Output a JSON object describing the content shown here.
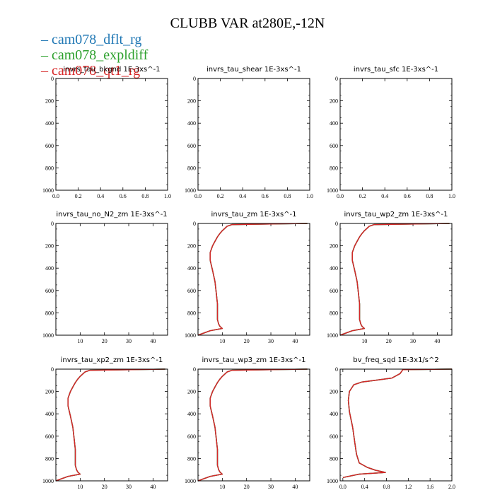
{
  "title": "CLUBB VAR at280E,-12N",
  "colors": {
    "series_0": "#1f77b4",
    "series_1": "#2ca02c",
    "series_2": "#d62728"
  },
  "legend": [
    "cam078_dflt_rg",
    "cam078_expldiff",
    "cam078_qt1_rg"
  ],
  "chart_data": [
    {
      "type": "line",
      "title": "invrs_tau_bkgnd   1E-3xs^-1",
      "xlim": [
        0,
        1
      ],
      "ylim": [
        1000,
        0
      ],
      "xticks": [
        0.0,
        0.2,
        0.4,
        0.6,
        0.8,
        1.0
      ],
      "xtick_labels": [
        "0.0",
        "0.2",
        "0.4",
        "0.6",
        "0.8",
        "1.0"
      ],
      "yticks": [
        0,
        200,
        400,
        600,
        800,
        1000
      ],
      "ytick_labels": [
        "0",
        "200",
        "400",
        "600",
        "800",
        "1000"
      ],
      "series": []
    },
    {
      "type": "line",
      "title": "invrs_tau_shear   1E-3xs^-1",
      "xlim": [
        0,
        1
      ],
      "ylim": [
        1000,
        0
      ],
      "xticks": [
        0.0,
        0.2,
        0.4,
        0.6,
        0.8,
        1.0
      ],
      "xtick_labels": [
        "0.0",
        "0.2",
        "0.4",
        "0.6",
        "0.8",
        "1.0"
      ],
      "yticks": [
        0,
        200,
        400,
        600,
        800,
        1000
      ],
      "ytick_labels": [
        "0",
        "200",
        "400",
        "600",
        "800",
        "1000"
      ],
      "series": []
    },
    {
      "type": "line",
      "title": "invrs_tau_sfc   1E-3xs^-1",
      "xlim": [
        0,
        1
      ],
      "ylim": [
        1000,
        0
      ],
      "xticks": [
        0.0,
        0.2,
        0.4,
        0.6,
        0.8,
        1.0
      ],
      "xtick_labels": [
        "0.0",
        "0.2",
        "0.4",
        "0.6",
        "0.8",
        "1.0"
      ],
      "yticks": [
        0,
        200,
        400,
        600,
        800,
        1000
      ],
      "ytick_labels": [
        "0",
        "200",
        "400",
        "600",
        "800",
        "1000"
      ],
      "series": []
    },
    {
      "type": "line",
      "title": "invrs_tau_no_N2_zm   1E-3xs^-1",
      "xlim": [
        0,
        46
      ],
      "ylim": [
        1000,
        0
      ],
      "xticks": [
        10,
        20,
        30,
        40
      ],
      "xtick_labels": [
        "10",
        "20",
        "30",
        "40"
      ],
      "yticks": [
        0,
        200,
        400,
        600,
        800,
        1000
      ],
      "ytick_labels": [
        "0",
        "200",
        "400",
        "600",
        "800",
        "1000"
      ],
      "series": []
    },
    {
      "type": "line",
      "title": "invrs_tau_zm   1E-3xs^-1",
      "xlim": [
        0,
        46
      ],
      "ylim": [
        1000,
        0
      ],
      "xticks": [
        10,
        20,
        30,
        40
      ],
      "xtick_labels": [
        "10",
        "20",
        "30",
        "40"
      ],
      "yticks": [
        0,
        200,
        400,
        600,
        800,
        1000
      ],
      "ytick_labels": [
        "0",
        "200",
        "400",
        "600",
        "800",
        "1000"
      ],
      "series": [
        {
          "color": "series_0",
          "x": [
            45,
            14,
            12,
            11,
            10,
            9,
            8,
            7,
            6,
            5,
            5,
            6,
            7,
            7.5,
            8,
            8,
            8,
            8.5,
            9,
            10,
            5,
            0
          ],
          "y": [
            0,
            10,
            25,
            45,
            65,
            90,
            120,
            160,
            200,
            260,
            330,
            420,
            520,
            620,
            720,
            800,
            860,
            900,
            920,
            940,
            960,
            1000
          ]
        },
        {
          "color": "series_1",
          "x": [
            45,
            14,
            12,
            11,
            10,
            9,
            8,
            7,
            6,
            5,
            5,
            6,
            7,
            7.5,
            8,
            8,
            8,
            8.5,
            9,
            10,
            5,
            0
          ],
          "y": [
            0,
            10,
            25,
            45,
            65,
            90,
            120,
            160,
            200,
            260,
            330,
            420,
            520,
            620,
            720,
            800,
            860,
            900,
            920,
            940,
            960,
            1000
          ]
        },
        {
          "color": "series_2",
          "x": [
            45,
            14,
            12,
            11,
            10,
            9,
            8,
            7,
            6,
            5,
            5,
            6,
            7,
            7.5,
            8,
            8,
            8,
            8.5,
            9,
            10,
            5,
            0
          ],
          "y": [
            0,
            10,
            25,
            45,
            65,
            90,
            120,
            160,
            200,
            260,
            330,
            420,
            520,
            620,
            720,
            800,
            860,
            900,
            920,
            940,
            960,
            1000
          ]
        }
      ]
    },
    {
      "type": "line",
      "title": "invrs_tau_wp2_zm   1E-3xs^-1",
      "xlim": [
        0,
        46
      ],
      "ylim": [
        1000,
        0
      ],
      "xticks": [
        10,
        20,
        30,
        40
      ],
      "xtick_labels": [
        "10",
        "20",
        "30",
        "40"
      ],
      "yticks": [
        0,
        200,
        400,
        600,
        800,
        1000
      ],
      "ytick_labels": [
        "0",
        "200",
        "400",
        "600",
        "800",
        "1000"
      ],
      "series": [
        {
          "color": "series_0",
          "x": [
            45,
            14,
            12,
            11,
            10,
            9,
            8,
            7,
            6,
            5,
            5,
            6,
            7,
            7.5,
            8,
            8,
            8,
            8.5,
            9,
            10,
            5,
            0
          ],
          "y": [
            0,
            10,
            25,
            45,
            65,
            90,
            120,
            160,
            200,
            260,
            330,
            420,
            520,
            620,
            720,
            800,
            860,
            900,
            920,
            940,
            960,
            1000
          ]
        },
        {
          "color": "series_1",
          "x": [
            45,
            14,
            12,
            11,
            10,
            9,
            8,
            7,
            6,
            5,
            5,
            6,
            7,
            7.5,
            8,
            8,
            8,
            8.5,
            9,
            10,
            5,
            0
          ],
          "y": [
            0,
            10,
            25,
            45,
            65,
            90,
            120,
            160,
            200,
            260,
            330,
            420,
            520,
            620,
            720,
            800,
            860,
            900,
            920,
            940,
            960,
            1000
          ]
        },
        {
          "color": "series_2",
          "x": [
            45,
            14,
            12,
            11,
            10,
            9,
            8,
            7,
            6,
            5,
            5,
            6,
            7,
            7.5,
            8,
            8,
            8,
            8.5,
            9,
            10,
            5,
            0
          ],
          "y": [
            0,
            10,
            25,
            45,
            65,
            90,
            120,
            160,
            200,
            260,
            330,
            420,
            520,
            620,
            720,
            800,
            860,
            900,
            920,
            940,
            960,
            1000
          ]
        }
      ]
    },
    {
      "type": "line",
      "title": "invrs_tau_xp2_zm   1E-3xs^-1",
      "xlim": [
        0,
        46
      ],
      "ylim": [
        1000,
        0
      ],
      "xticks": [
        10,
        20,
        30,
        40
      ],
      "xtick_labels": [
        "10",
        "20",
        "30",
        "40"
      ],
      "yticks": [
        0,
        200,
        400,
        600,
        800,
        1000
      ],
      "ytick_labels": [
        "0",
        "200",
        "400",
        "600",
        "800",
        "1000"
      ],
      "series": [
        {
          "color": "series_0",
          "x": [
            45,
            14,
            12,
            11,
            10,
            9,
            8,
            7,
            6,
            5,
            5,
            6,
            7,
            7.5,
            8,
            8,
            8,
            8.5,
            9,
            10,
            5,
            0
          ],
          "y": [
            0,
            10,
            25,
            45,
            65,
            90,
            120,
            160,
            200,
            260,
            330,
            420,
            520,
            620,
            720,
            800,
            860,
            900,
            920,
            940,
            960,
            1000
          ]
        },
        {
          "color": "series_1",
          "x": [
            45,
            14,
            12,
            11,
            10,
            9,
            8,
            7,
            6,
            5,
            5,
            6,
            7,
            7.5,
            8,
            8,
            8,
            8.5,
            9,
            10,
            5,
            0
          ],
          "y": [
            0,
            10,
            25,
            45,
            65,
            90,
            120,
            160,
            200,
            260,
            330,
            420,
            520,
            620,
            720,
            800,
            860,
            900,
            920,
            940,
            960,
            1000
          ]
        },
        {
          "color": "series_2",
          "x": [
            45,
            14,
            12,
            11,
            10,
            9,
            8,
            7,
            6,
            5,
            5,
            6,
            7,
            7.5,
            8,
            8,
            8,
            8.5,
            9,
            10,
            5,
            0
          ],
          "y": [
            0,
            10,
            25,
            45,
            65,
            90,
            120,
            160,
            200,
            260,
            330,
            420,
            520,
            620,
            720,
            800,
            860,
            900,
            920,
            940,
            960,
            1000
          ]
        }
      ]
    },
    {
      "type": "line",
      "title": "invrs_tau_wp3_zm   1E-3xs^-1",
      "xlim": [
        0,
        46
      ],
      "ylim": [
        1000,
        0
      ],
      "xticks": [
        10,
        20,
        30,
        40
      ],
      "xtick_labels": [
        "10",
        "20",
        "30",
        "40"
      ],
      "yticks": [
        0,
        200,
        400,
        600,
        800,
        1000
      ],
      "ytick_labels": [
        "0",
        "200",
        "400",
        "600",
        "800",
        "1000"
      ],
      "series": [
        {
          "color": "series_0",
          "x": [
            45,
            14,
            12,
            11,
            10,
            9,
            8,
            7,
            6,
            5,
            5,
            6,
            7,
            7.5,
            8,
            8,
            8,
            8.5,
            9,
            10,
            5,
            0
          ],
          "y": [
            0,
            10,
            25,
            45,
            65,
            90,
            120,
            160,
            200,
            260,
            330,
            420,
            520,
            620,
            720,
            800,
            860,
            900,
            920,
            940,
            960,
            1000
          ]
        },
        {
          "color": "series_1",
          "x": [
            45,
            14,
            12,
            11,
            10,
            9,
            8,
            7,
            6,
            5,
            5,
            6,
            7,
            7.5,
            8,
            8,
            8,
            8.5,
            9,
            10,
            5,
            0
          ],
          "y": [
            0,
            10,
            25,
            45,
            65,
            90,
            120,
            160,
            200,
            260,
            330,
            420,
            520,
            620,
            720,
            800,
            860,
            900,
            920,
            940,
            960,
            1000
          ]
        },
        {
          "color": "series_2",
          "x": [
            45,
            14,
            12,
            11,
            10,
            9,
            8,
            7,
            6,
            5,
            5,
            6,
            7,
            7.5,
            8,
            8,
            8,
            8.5,
            9,
            10,
            5,
            0
          ],
          "y": [
            0,
            10,
            25,
            45,
            65,
            90,
            120,
            160,
            200,
            260,
            330,
            420,
            520,
            620,
            720,
            800,
            860,
            900,
            920,
            940,
            960,
            1000
          ]
        }
      ]
    },
    {
      "type": "line",
      "title": "bv_freq_sqd   1E-3x1/s^2",
      "xlim": [
        -0.05,
        2.0
      ],
      "ylim": [
        1000,
        0
      ],
      "xticks": [
        0.0,
        0.4,
        0.8,
        1.2,
        1.6,
        2.0
      ],
      "xtick_labels": [
        "0.0",
        "0.4",
        "0.8",
        "1.2",
        "1.6",
        "2.0"
      ],
      "yticks": [
        0,
        200,
        400,
        600,
        800,
        1000
      ],
      "ytick_labels": [
        "0",
        "200",
        "400",
        "600",
        "800",
        "1000"
      ],
      "series": [
        {
          "color": "series_0",
          "x": [
            2.0,
            1.1,
            1.05,
            0.9,
            0.6,
            0.35,
            0.2,
            0.12,
            0.1,
            0.12,
            0.18,
            0.22,
            0.25,
            0.3,
            0.45,
            0.6,
            0.78,
            0.3,
            0.0
          ],
          "y": [
            0,
            5,
            40,
            80,
            100,
            115,
            140,
            200,
            280,
            380,
            520,
            660,
            760,
            840,
            880,
            905,
            925,
            940,
            970
          ]
        },
        {
          "color": "series_1",
          "x": [
            2.0,
            1.1,
            1.05,
            0.9,
            0.6,
            0.35,
            0.2,
            0.12,
            0.1,
            0.12,
            0.18,
            0.22,
            0.25,
            0.3,
            0.45,
            0.6,
            0.78,
            0.3,
            0.0
          ],
          "y": [
            0,
            5,
            40,
            80,
            100,
            115,
            140,
            200,
            280,
            380,
            520,
            660,
            760,
            840,
            880,
            905,
            925,
            940,
            970
          ]
        },
        {
          "color": "series_2",
          "x": [
            2.0,
            1.1,
            1.05,
            0.9,
            0.6,
            0.35,
            0.2,
            0.12,
            0.1,
            0.12,
            0.18,
            0.22,
            0.25,
            0.3,
            0.45,
            0.6,
            0.78,
            0.3,
            0.0
          ],
          "y": [
            0,
            5,
            40,
            80,
            100,
            115,
            140,
            200,
            280,
            380,
            520,
            660,
            760,
            840,
            880,
            905,
            925,
            940,
            970
          ]
        }
      ]
    }
  ]
}
